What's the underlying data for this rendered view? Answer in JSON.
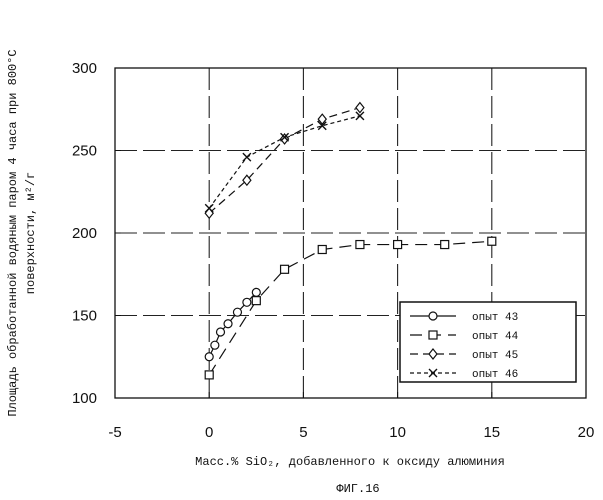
{
  "chart_data": {
    "type": "line",
    "xlabel": "Масс.% SiO₂, добавленного к оксиду алюминия",
    "ylabel_line1": "Площадь обработанной водяным паром 4 часа при 800°C",
    "ylabel_line2": "поверхности, м²/г",
    "figure_label": "ФИГ.16",
    "xlim": [
      -5,
      20
    ],
    "ylim": [
      100,
      300
    ],
    "x_ticks": [
      -5,
      0,
      5,
      10,
      15,
      20
    ],
    "y_ticks": [
      100,
      150,
      200,
      250,
      300
    ],
    "grid": true,
    "legend_position": "bottom-right",
    "series": [
      {
        "name": "опыт 43",
        "marker": "circle",
        "dash": "solid",
        "x": [
          0,
          0.3,
          0.6,
          1.0,
          1.5,
          2.0,
          2.5
        ],
        "y": [
          125,
          132,
          140,
          145,
          152,
          158,
          164
        ]
      },
      {
        "name": "опыт 44",
        "marker": "square",
        "dash": "long-dash",
        "x": [
          0,
          2.5,
          4.0,
          6.0,
          8.0,
          10.0,
          12.5,
          15.0
        ],
        "y": [
          114,
          159,
          178,
          190,
          193,
          193,
          193,
          195
        ]
      },
      {
        "name": "опыт 45",
        "marker": "diamond",
        "dash": "dash",
        "x": [
          0,
          2.0,
          4.0,
          6.0,
          8.0
        ],
        "y": [
          212,
          232,
          257,
          269,
          276
        ]
      },
      {
        "name": "опыт 46",
        "marker": "x",
        "dash": "short-dash",
        "x": [
          0,
          2.0,
          4.0,
          6.0,
          8.0
        ],
        "y": [
          215,
          246,
          258,
          265,
          271
        ]
      }
    ]
  }
}
